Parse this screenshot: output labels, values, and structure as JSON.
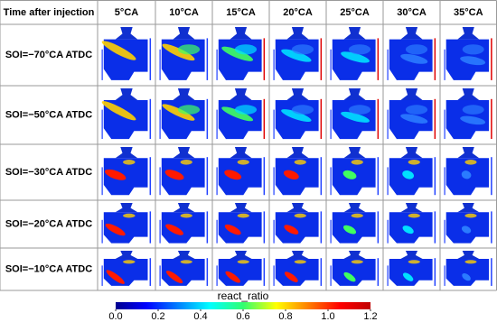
{
  "header": {
    "corner": "Time after injection",
    "columns": [
      "5°CA",
      "10°CA",
      "15°CA",
      "20°CA",
      "25°CA",
      "30°CA",
      "35°CA"
    ]
  },
  "rows": [
    {
      "label": "SOI=−70°CA ATDC"
    },
    {
      "label": "SOI=−50°CA ATDC"
    },
    {
      "label": "SOI=−30°CA ATDC"
    },
    {
      "label": "SOI=−20°CA ATDC"
    },
    {
      "label": "SOI=−10°CA ATDC"
    }
  ],
  "colorbar": {
    "label": "react_ratio",
    "ticks": [
      {
        "value": 0,
        "label": "0.0"
      },
      {
        "value": 0.2,
        "label": "0.2"
      },
      {
        "value": 0.4,
        "label": "0.4"
      },
      {
        "value": 0.6,
        "label": "0.6"
      },
      {
        "value": 0.8,
        "label": "0.8"
      },
      {
        "value": 1.0,
        "label": "1.0"
      },
      {
        "value": 1.2,
        "label": "1.2"
      }
    ]
  }
}
